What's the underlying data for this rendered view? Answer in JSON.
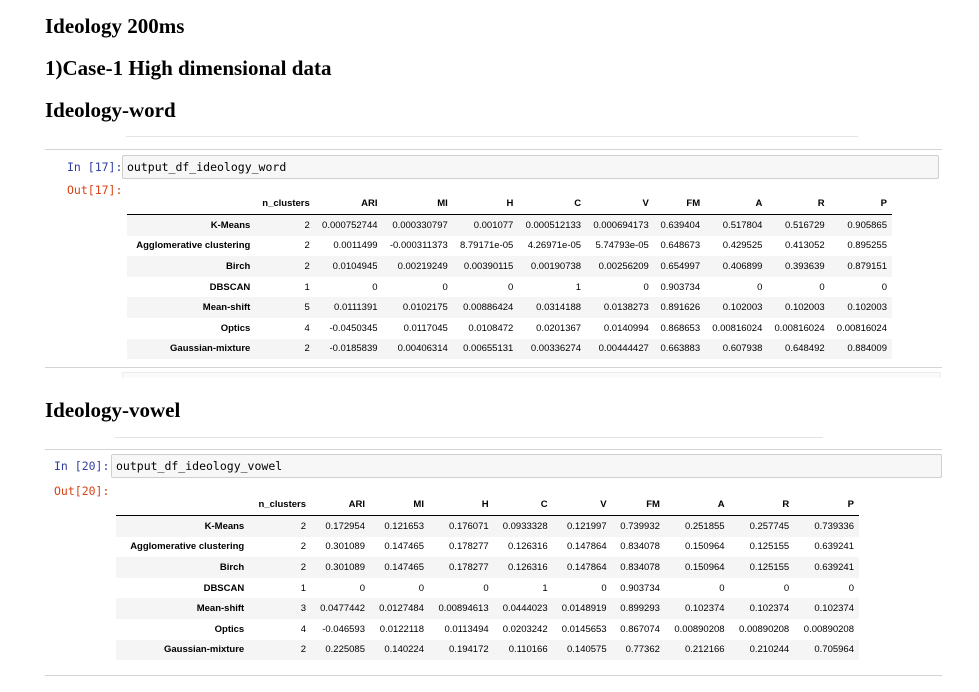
{
  "headings": {
    "title": "Ideology 200ms",
    "case": "1)Case-1 High dimensional data",
    "section1": "Ideology-word",
    "section2": "Ideology-vowel"
  },
  "columns": [
    "n_clusters",
    "ARI",
    "MI",
    "H",
    "C",
    "V",
    "FM",
    "A",
    "R",
    "P"
  ],
  "cell1": {
    "in_prompt": "In [17]:",
    "out_prompt": "Out[17]:",
    "code": "output_df_ideology_word",
    "rows": [
      {
        "label": "K-Means",
        "values": [
          "2",
          "0.000752744",
          "0.000330797",
          "0.001077",
          "0.000512133",
          "0.000694173",
          "0.639404",
          "0.517804",
          "0.516729",
          "0.905865"
        ]
      },
      {
        "label": "Agglomerative clustering",
        "values": [
          "2",
          "0.0011499",
          "-0.000311373",
          "8.79171e-05",
          "4.26971e-05",
          "5.74793e-05",
          "0.648673",
          "0.429525",
          "0.413052",
          "0.895255"
        ]
      },
      {
        "label": "Birch",
        "values": [
          "2",
          "0.0104945",
          "0.00219249",
          "0.00390115",
          "0.00190738",
          "0.00256209",
          "0.654997",
          "0.406899",
          "0.393639",
          "0.879151"
        ]
      },
      {
        "label": "DBSCAN",
        "values": [
          "1",
          "0",
          "0",
          "0",
          "1",
          "0",
          "0.903734",
          "0",
          "0",
          "0"
        ]
      },
      {
        "label": "Mean-shift",
        "values": [
          "5",
          "0.0111391",
          "0.0102175",
          "0.00886424",
          "0.0314188",
          "0.0138273",
          "0.891626",
          "0.102003",
          "0.102003",
          "0.102003"
        ]
      },
      {
        "label": "Optics",
        "values": [
          "4",
          "-0.0450345",
          "0.0117045",
          "0.0108472",
          "0.0201367",
          "0.0140994",
          "0.868653",
          "0.00816024",
          "0.00816024",
          "0.00816024"
        ]
      },
      {
        "label": "Gaussian-mixture",
        "values": [
          "2",
          "-0.0185839",
          "0.00406314",
          "0.00655131",
          "0.00336274",
          "0.00444427",
          "0.663883",
          "0.607938",
          "0.648492",
          "0.884009"
        ]
      }
    ]
  },
  "cell2": {
    "in_prompt": "In [20]:",
    "out_prompt": "Out[20]:",
    "code": "output_df_ideology_vowel",
    "rows": [
      {
        "label": "K-Means",
        "values": [
          "2",
          "0.172954",
          "0.121653",
          "0.176071",
          "0.0933328",
          "0.121997",
          "0.739932",
          "0.251855",
          "0.257745",
          "0.739336"
        ]
      },
      {
        "label": "Agglomerative clustering",
        "values": [
          "2",
          "0.301089",
          "0.147465",
          "0.178277",
          "0.126316",
          "0.147864",
          "0.834078",
          "0.150964",
          "0.125155",
          "0.639241"
        ]
      },
      {
        "label": "Birch",
        "values": [
          "2",
          "0.301089",
          "0.147465",
          "0.178277",
          "0.126316",
          "0.147864",
          "0.834078",
          "0.150964",
          "0.125155",
          "0.639241"
        ]
      },
      {
        "label": "DBSCAN",
        "values": [
          "1",
          "0",
          "0",
          "0",
          "1",
          "0",
          "0.903734",
          "0",
          "0",
          "0"
        ]
      },
      {
        "label": "Mean-shift",
        "values": [
          "3",
          "0.0477442",
          "0.0127484",
          "0.00894613",
          "0.0444023",
          "0.0148919",
          "0.899293",
          "0.102374",
          "0.102374",
          "0.102374"
        ]
      },
      {
        "label": "Optics",
        "values": [
          "4",
          "-0.046593",
          "0.0122118",
          "0.0113494",
          "0.0203242",
          "0.0145653",
          "0.867074",
          "0.00890208",
          "0.00890208",
          "0.00890208"
        ]
      },
      {
        "label": "Gaussian-mixture",
        "values": [
          "2",
          "0.225085",
          "0.140224",
          "0.194172",
          "0.110166",
          "0.140575",
          "0.77362",
          "0.212166",
          "0.210244",
          "0.705964"
        ]
      }
    ]
  }
}
